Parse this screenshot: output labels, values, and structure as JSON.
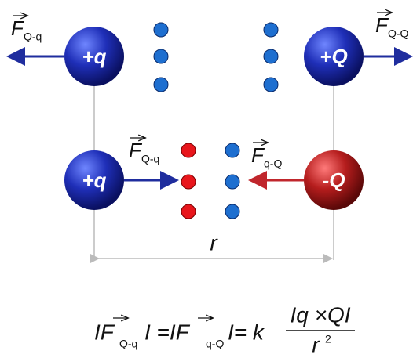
{
  "spheres": [
    {
      "label": "+q"
    },
    {
      "label": "+Q"
    },
    {
      "label": "+q"
    },
    {
      "label": "-Q"
    }
  ],
  "forces": [
    {
      "symbol": "F",
      "subscript": "Q-q"
    },
    {
      "symbol": "F",
      "subscript": "Q-Q"
    },
    {
      "symbol": "F",
      "subscript": "Q-q"
    },
    {
      "symbol": "F",
      "subscript": "q-Q"
    }
  ],
  "distance": "r",
  "formula": {
    "lhs1": "IF",
    "sub1": "Q-q",
    "mid": "I =IF",
    "sub2": "q-Q",
    "rhs": "I= k",
    "numerator": "Iq ×QI",
    "denominator": "r",
    "power": "2"
  }
}
